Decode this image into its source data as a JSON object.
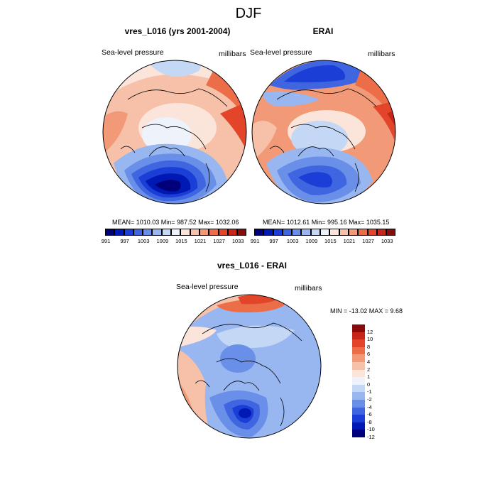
{
  "page_title": "DJF",
  "panels": [
    {
      "title": "vres_L016 (yrs 2001-2004)",
      "left_label": "Sea-level pressure",
      "right_label": "millibars",
      "stats": "MEAN= 1010.03  Min= 987.52  Max= 1032.06"
    },
    {
      "title": "ERAI",
      "left_label": "Sea-level pressure",
      "right_label": "millibars",
      "stats": "MEAN= 1012.61  Min= 995.16  Max= 1035.15"
    }
  ],
  "diff_panel": {
    "title": "vres_L016 - ERAI",
    "left_label": "Sea-level pressure",
    "right_label": "millibars",
    "stats": "MIN = -13.02 MAX =   9.68"
  },
  "colorbar_main": {
    "colors": [
      "#00007a",
      "#0019b4",
      "#1a3ed6",
      "#3f66e0",
      "#6a8fe8",
      "#98b6f0",
      "#c4d8f6",
      "#eef2fb",
      "#fbe4da",
      "#f7c0a8",
      "#f29a78",
      "#ec6e48",
      "#e2452a",
      "#c8261a",
      "#8a0a0a"
    ],
    "tick_labels": [
      "991",
      "997",
      "1003",
      "1009",
      "1015",
      "1021",
      "1027",
      "1033"
    ]
  },
  "colorbar_diff": {
    "colors": [
      "#8a0a0a",
      "#c8261a",
      "#e2452a",
      "#ec6e48",
      "#f29a78",
      "#f7c0a8",
      "#fbe4da",
      "#eef2fb",
      "#c4d8f6",
      "#98b6f0",
      "#6a8fe8",
      "#3f66e0",
      "#1a3ed6",
      "#0019b4",
      "#00007a"
    ],
    "tick_labels": [
      "12",
      "10",
      "8",
      "6",
      "4",
      "2",
      "1",
      "0",
      "-1",
      "-2",
      "-4",
      "-6",
      "-8",
      "-10",
      "-12"
    ]
  },
  "legend_colors": {
    "low": "#00007a",
    "neutral": "#eef2fb",
    "high": "#8a0a0a"
  }
}
